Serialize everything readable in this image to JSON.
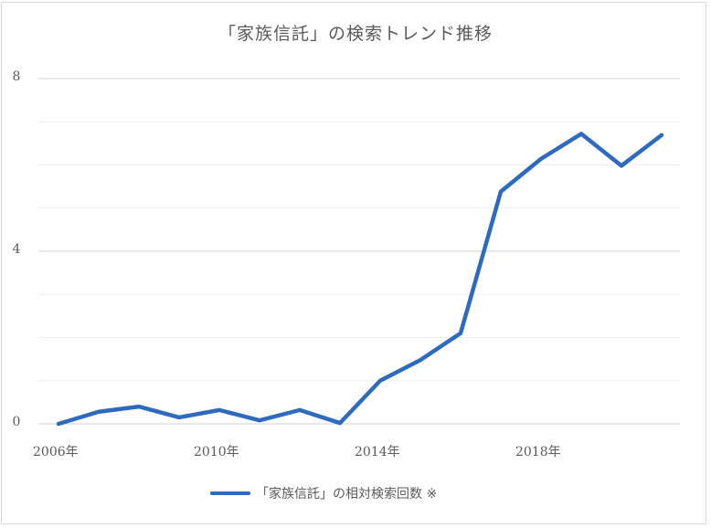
{
  "chart_data": {
    "type": "line",
    "title": "「家族信託」の検索トレンド推移",
    "xlabel": "",
    "ylabel": "",
    "x": [
      2006,
      2007,
      2008,
      2009,
      2010,
      2011,
      2012,
      2013,
      2014,
      2015,
      2016,
      2017,
      2018,
      2019,
      2020,
      2021
    ],
    "series": [
      {
        "name": "「家族信託」の相対検索回数 ※",
        "color": "#2e6bbf",
        "values": [
          0.0,
          0.28,
          0.4,
          0.15,
          0.32,
          0.08,
          0.32,
          0.02,
          1.0,
          1.48,
          2.1,
          5.38,
          6.14,
          6.72,
          5.98,
          6.69
        ]
      }
    ],
    "ylim": [
      0,
      8
    ],
    "y_ticks": [
      "0",
      "4",
      "8"
    ],
    "x_ticks": [
      "2006年",
      "2010年",
      "2014年",
      "2018年"
    ],
    "grid": true,
    "minor_grid_step": 1,
    "legend_position": "bottom"
  },
  "axis": {
    "y_labels": [
      "8",
      "4",
      "0"
    ],
    "x_labels": [
      "2006年",
      "2010年",
      "2014年",
      "2018年"
    ]
  },
  "legend": {
    "label": "「家族信託」の相対検索回数 ※",
    "color": "#2e6bbf"
  }
}
